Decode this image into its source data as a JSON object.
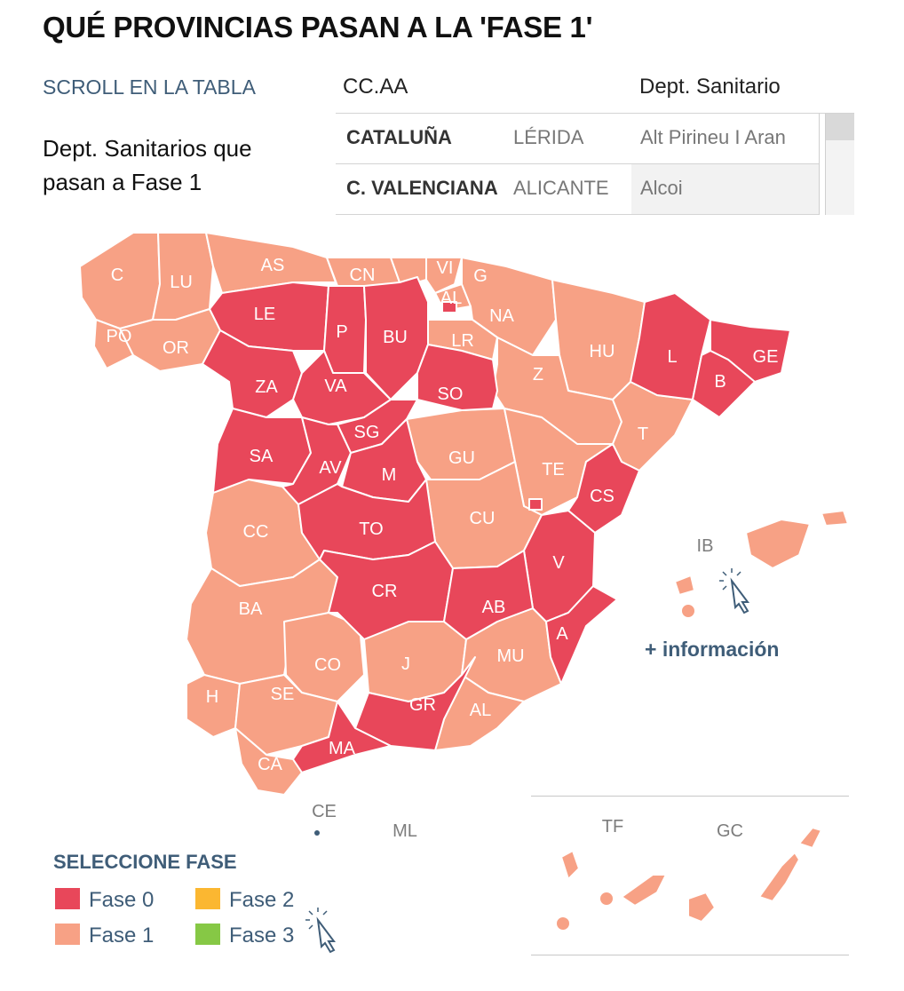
{
  "title": "QUÉ PROVINCIAS PASAN A LA 'FASE 1'",
  "scroll_hint": "SCROLL EN LA TABLA",
  "subtitle": "Dept. Sanitarios que pasan a Fase 1",
  "table": {
    "headers": {
      "ccaa": "CC.AA",
      "dept": "Dept. Sanitario"
    },
    "rows": [
      {
        "ccaa": "CATALUÑA",
        "province": "LÉRIDA",
        "dept": "Alt Pirineu I Aran"
      },
      {
        "ccaa": "C. VALENCIANA",
        "province": "ALICANTE",
        "dept": "Alcoi"
      }
    ]
  },
  "colors": {
    "fase0": "#e8475a",
    "fase1": "#f7a185",
    "fase2": "#fbb731",
    "fase3": "#86c845",
    "border": "#ffffff",
    "label_light": "#ffffff",
    "label_dark": "#7d7d7d"
  },
  "provinces": {
    "C": "C",
    "LU": "LU",
    "AS": "AS",
    "CN": "CN",
    "VI": "VI",
    "G": "G",
    "PO": "PO",
    "OR": "OR",
    "LE": "LE",
    "P": "P",
    "BU": "BU",
    "AL": "AL",
    "NA": "NA",
    "LR": "LR",
    "HU": "HU",
    "L": "L",
    "GE": "GE",
    "B": "B",
    "ZA": "ZA",
    "VA": "VA",
    "SO": "SO",
    "Z": "Z",
    "SG": "SG",
    "SA": "SA",
    "AV": "AV",
    "M": "M",
    "GU": "GU",
    "TE": "TE",
    "T": "T",
    "CS": "CS",
    "CU": "CU",
    "TO": "TO",
    "CC": "CC",
    "V": "V",
    "CR": "CR",
    "AB": "AB",
    "BA": "BA",
    "A": "A",
    "CO": "CO",
    "J": "J",
    "MU": "MU",
    "H": "H",
    "SE": "SE",
    "GR": "GR",
    "AL2": "AL",
    "MA": "MA",
    "CA": "CA",
    "CE": "CE",
    "ML": "ML",
    "IB": "IB",
    "TF": "TF",
    "GC": "GC"
  },
  "more_info": "+ información",
  "legend": {
    "title": "SELECCIONE FASE",
    "items": [
      {
        "label": "Fase 0"
      },
      {
        "label": "Fase 2"
      },
      {
        "label": "Fase 1"
      },
      {
        "label": "Fase 3"
      }
    ]
  }
}
